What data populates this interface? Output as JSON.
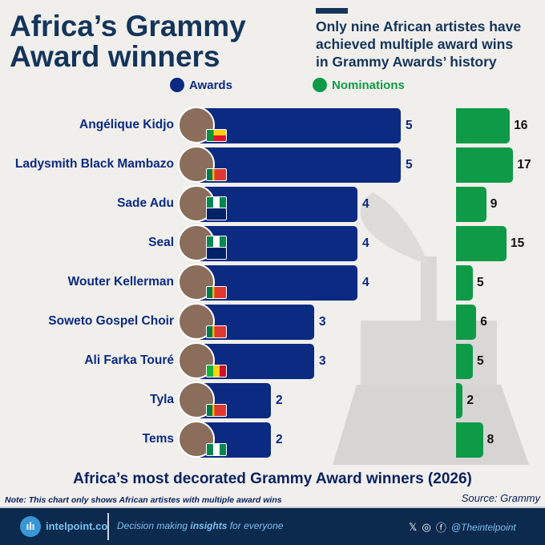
{
  "header": {
    "title_line1": "Africa’s Grammy",
    "title_line2": "Award winners",
    "subtitle": [
      "Only nine African artistes have",
      "achieved multiple award wins",
      "in Grammy Awards’ history"
    ]
  },
  "chart_data": {
    "type": "bar",
    "title": "Africa’s most decorated Grammy Award winners (2026)",
    "categories": [
      "Angélique Kidjo",
      "Ladysmith Black Mambazo",
      "Sade Adu",
      "Seal",
      "Wouter Kellerman",
      "Soweto Gospel Choir",
      "Ali Farka Touré",
      "Tyla",
      "Tems"
    ],
    "flags": [
      [
        "benin"
      ],
      [
        "south-africa"
      ],
      [
        "nigeria",
        "uk"
      ],
      [
        "nigeria",
        "uk"
      ],
      [
        "south-africa"
      ],
      [
        "south-africa"
      ],
      [
        "mali"
      ],
      [
        "south-africa"
      ],
      [
        "nigeria"
      ]
    ],
    "series": [
      {
        "name": "Awards",
        "color": "#0b2a82",
        "values": [
          5,
          5,
          4,
          4,
          4,
          3,
          3,
          2,
          2
        ]
      },
      {
        "name": "Nominations",
        "color": "#0f9a48",
        "values": [
          16,
          17,
          9,
          15,
          5,
          6,
          5,
          2,
          8
        ]
      }
    ],
    "legend": "top"
  },
  "note": "Note: This chart only shows African artistes with multiple award wins",
  "source": "Source: Grammy",
  "footer": {
    "brand": "intelpoint.co",
    "tag_pre": "Decision making ",
    "tag_bold": "insights",
    "tag_post": " for everyone",
    "handle": "@Theintelpoint",
    "logo": "ılı"
  }
}
